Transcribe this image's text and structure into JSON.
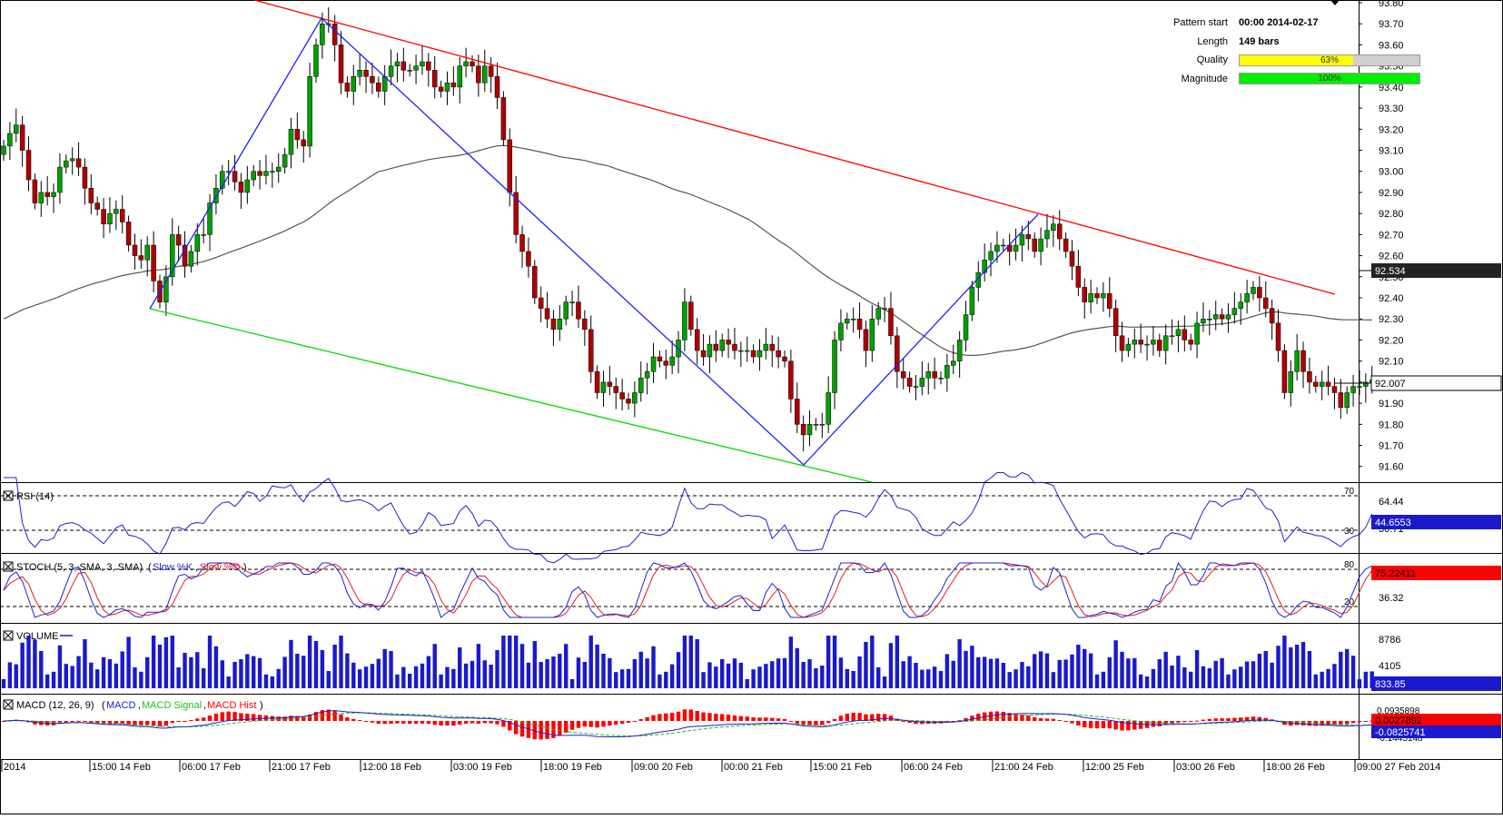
{
  "colors": {
    "bull": "#00a000",
    "bear": "#b00000",
    "channel_upper": "#ff0000",
    "channel_lower": "#00dd00",
    "zigzag": "#2020ff",
    "ma": "#555555",
    "rsi": "#2020d0",
    "stoch_k": "#2020d0",
    "stoch_d": "#e02020",
    "volume": "#1a1acc",
    "macd_line": "#2020d0",
    "macd_signal": "#20c020",
    "macd_hist": "#ff0000",
    "quality_fill": "#ffff00",
    "magnitude_fill": "#00ee00"
  },
  "info": {
    "pattern_start_label": "Pattern start",
    "pattern_start_value": "00:00 2014-02-17",
    "length_label": "Length",
    "length_value": "149 bars",
    "quality_label": "Quality",
    "quality_value": "63%",
    "quality_fraction": 0.63,
    "magnitude_label": "Magnitude",
    "magnitude_value": "100%",
    "magnitude_fraction": 1.0
  },
  "chart_data": [
    {
      "type": "candlestick",
      "title": "",
      "ylim": [
        91.53,
        93.8
      ],
      "y_ticks": [
        "93.80",
        "93.70",
        "93.60",
        "93.50",
        "93.40",
        "93.30",
        "93.20",
        "93.10",
        "93.00",
        "92.90",
        "92.80",
        "92.70",
        "92.60",
        "92.50",
        "92.40",
        "92.30",
        "92.20",
        "92.10",
        "92.00",
        "91.90",
        "91.80",
        "91.70",
        "91.60"
      ],
      "price_badges": [
        "92.534",
        "92.007"
      ],
      "x_labels": [
        "2014",
        "15:00 14 Feb",
        "06:00 17 Feb",
        "21:00 17 Feb",
        "12:00 18 Feb",
        "03:00 19 Feb",
        "18:00 19 Feb",
        "09:00 20 Feb",
        "00:00 21 Feb",
        "15:00 21 Feb",
        "06:00 24 Feb",
        "21:00 24 Feb",
        "12:00 25 Feb",
        "03:00 26 Feb",
        "18:00 26 Feb",
        "09:00 27 Feb 2014"
      ],
      "closes": [
        93.12,
        93.18,
        93.22,
        93.1,
        92.96,
        92.85,
        92.9,
        92.88,
        92.9,
        93.02,
        93.05,
        93.06,
        93.02,
        92.92,
        92.85,
        92.82,
        92.75,
        92.8,
        92.82,
        92.76,
        92.65,
        92.6,
        92.58,
        92.65,
        92.48,
        92.38,
        92.5,
        92.7,
        92.65,
        92.55,
        92.62,
        92.7,
        92.7,
        92.85,
        92.92,
        93.0,
        93.0,
        92.95,
        92.9,
        92.96,
        93.0,
        92.98,
        93.0,
        93.0,
        93.02,
        93.08,
        93.2,
        93.15,
        93.12,
        93.45,
        93.6,
        93.7,
        93.7,
        93.6,
        93.42,
        93.38,
        93.45,
        93.48,
        93.45,
        93.42,
        93.38,
        93.45,
        93.5,
        93.52,
        93.48,
        93.48,
        93.5,
        93.52,
        93.48,
        93.4,
        93.38,
        93.42,
        93.4,
        93.5,
        93.52,
        93.5,
        93.42,
        93.5,
        93.45,
        93.35,
        93.15,
        92.9,
        92.7,
        92.62,
        92.55,
        92.4,
        92.35,
        92.3,
        92.25,
        92.3,
        92.38,
        92.38,
        92.3,
        92.25,
        92.05,
        91.95,
        92.0,
        91.98,
        91.95,
        91.92,
        91.9,
        91.95,
        92.02,
        92.05,
        92.12,
        92.1,
        92.08,
        92.12,
        92.2,
        92.38,
        92.25,
        92.15,
        92.12,
        92.18,
        92.15,
        92.2,
        92.18,
        92.15,
        92.15,
        92.15,
        92.12,
        92.15,
        92.18,
        92.15,
        92.12,
        92.1,
        91.92,
        91.8,
        91.75,
        91.8,
        91.8,
        91.8,
        91.95,
        92.2,
        92.28,
        92.3,
        92.3,
        92.25,
        92.15,
        92.3,
        92.35,
        92.35,
        92.22,
        92.05,
        92.02,
        91.98,
        91.98,
        92.02,
        92.05,
        92.02,
        92.02,
        92.08,
        92.1,
        92.2,
        92.32,
        92.45,
        92.52,
        92.58,
        92.62,
        92.65,
        92.65,
        92.62,
        92.65,
        92.7,
        92.68,
        92.62,
        92.68,
        92.72,
        92.75,
        92.68,
        92.62,
        92.55,
        92.45,
        92.38,
        92.42,
        92.4,
        92.42,
        92.35,
        92.22,
        92.15,
        92.18,
        92.2,
        92.18,
        92.18,
        92.2,
        92.15,
        92.22,
        92.22,
        92.25,
        92.2,
        92.18,
        92.28,
        92.3,
        92.3,
        92.32,
        92.3,
        92.32,
        92.35,
        92.38,
        92.42,
        92.45,
        92.4,
        92.35,
        92.28,
        92.15,
        91.95,
        92.05,
        92.15,
        92.05,
        92.0,
        91.98,
        92.0,
        91.98,
        91.95,
        91.88,
        91.95,
        91.98,
        91.98,
        92.0,
        92.01
      ]
    },
    {
      "type": "line",
      "title": "RSI (14)",
      "levels": [
        "70",
        "30"
      ],
      "right_labels": [
        "64.44",
        "30.71"
      ],
      "badge": "44.6553"
    },
    {
      "type": "line",
      "title": "STOCH (5, 3, SMA, 3, SMA)",
      "series_names": [
        "Slow %K",
        "Slow %D"
      ],
      "levels": [
        "80",
        "20"
      ],
      "right_labels": [
        "36.32"
      ],
      "badge": "75.22411"
    },
    {
      "type": "bar",
      "title": "VOLUME",
      "right_labels": [
        "8786",
        "4105"
      ],
      "badge": "833.85"
    },
    {
      "type": "line",
      "title": "MACD (12, 26, 9)",
      "series_names": [
        "MACD",
        "MACD Signal",
        "MACD Hist"
      ],
      "right_labels": [
        "0.0935898",
        "-0.1445148"
      ],
      "badges": [
        "0.0027892",
        "-0.0825741"
      ]
    }
  ]
}
